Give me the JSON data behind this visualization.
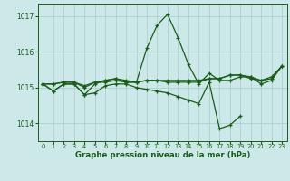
{
  "title": "Graphe pression niveau de la mer (hPa)",
  "bg_color": "#cce8e8",
  "grid_color": "#aacccc",
  "line_color": "#1a5c1a",
  "ylim": [
    1013.5,
    1017.35
  ],
  "xlim": [
    -0.5,
    23.5
  ],
  "yticks": [
    1014,
    1015,
    1016,
    1017
  ],
  "xticks": [
    0,
    1,
    2,
    3,
    4,
    5,
    6,
    7,
    8,
    9,
    10,
    11,
    12,
    13,
    14,
    15,
    16,
    17,
    18,
    19,
    20,
    21,
    22,
    23
  ],
  "series": [
    [
      1015.1,
      1014.9,
      1015.1,
      1015.1,
      1014.8,
      1015.1,
      1015.2,
      1015.25,
      1015.2,
      1015.15,
      1016.1,
      1016.75,
      1017.05,
      1016.4,
      1015.65,
      1015.1,
      1015.4,
      1015.2,
      1015.2,
      1015.3,
      1015.3,
      1015.1,
      1015.2,
      1015.6
    ],
    [
      1015.1,
      1015.1,
      1015.15,
      1015.15,
      1015.05,
      1015.15,
      1015.15,
      1015.2,
      1015.15,
      1015.15,
      1015.2,
      1015.2,
      1015.2,
      1015.2,
      1015.2,
      1015.2,
      1015.25,
      1015.25,
      1015.35,
      1015.35,
      1015.3,
      1015.2,
      1015.3,
      1015.6
    ],
    [
      1015.1,
      1015.1,
      1015.15,
      1015.15,
      1015.0,
      1015.15,
      1015.2,
      1015.25,
      1015.15,
      1015.15,
      1015.2,
      1015.2,
      1015.15,
      1015.15,
      1015.15,
      1015.15,
      1015.25,
      1015.25,
      1015.35,
      1015.35,
      1015.25,
      1015.2,
      1015.25,
      1015.6
    ],
    [
      1015.1,
      1014.9,
      1015.1,
      1015.1,
      1014.8,
      1014.85,
      1015.05,
      1015.1,
      1015.1,
      1015.0,
      1014.95,
      1014.9,
      1014.85,
      1014.75,
      1014.65,
      1014.55,
      1015.15,
      1013.85,
      1013.95,
      1014.2,
      null,
      null,
      null,
      null
    ]
  ]
}
